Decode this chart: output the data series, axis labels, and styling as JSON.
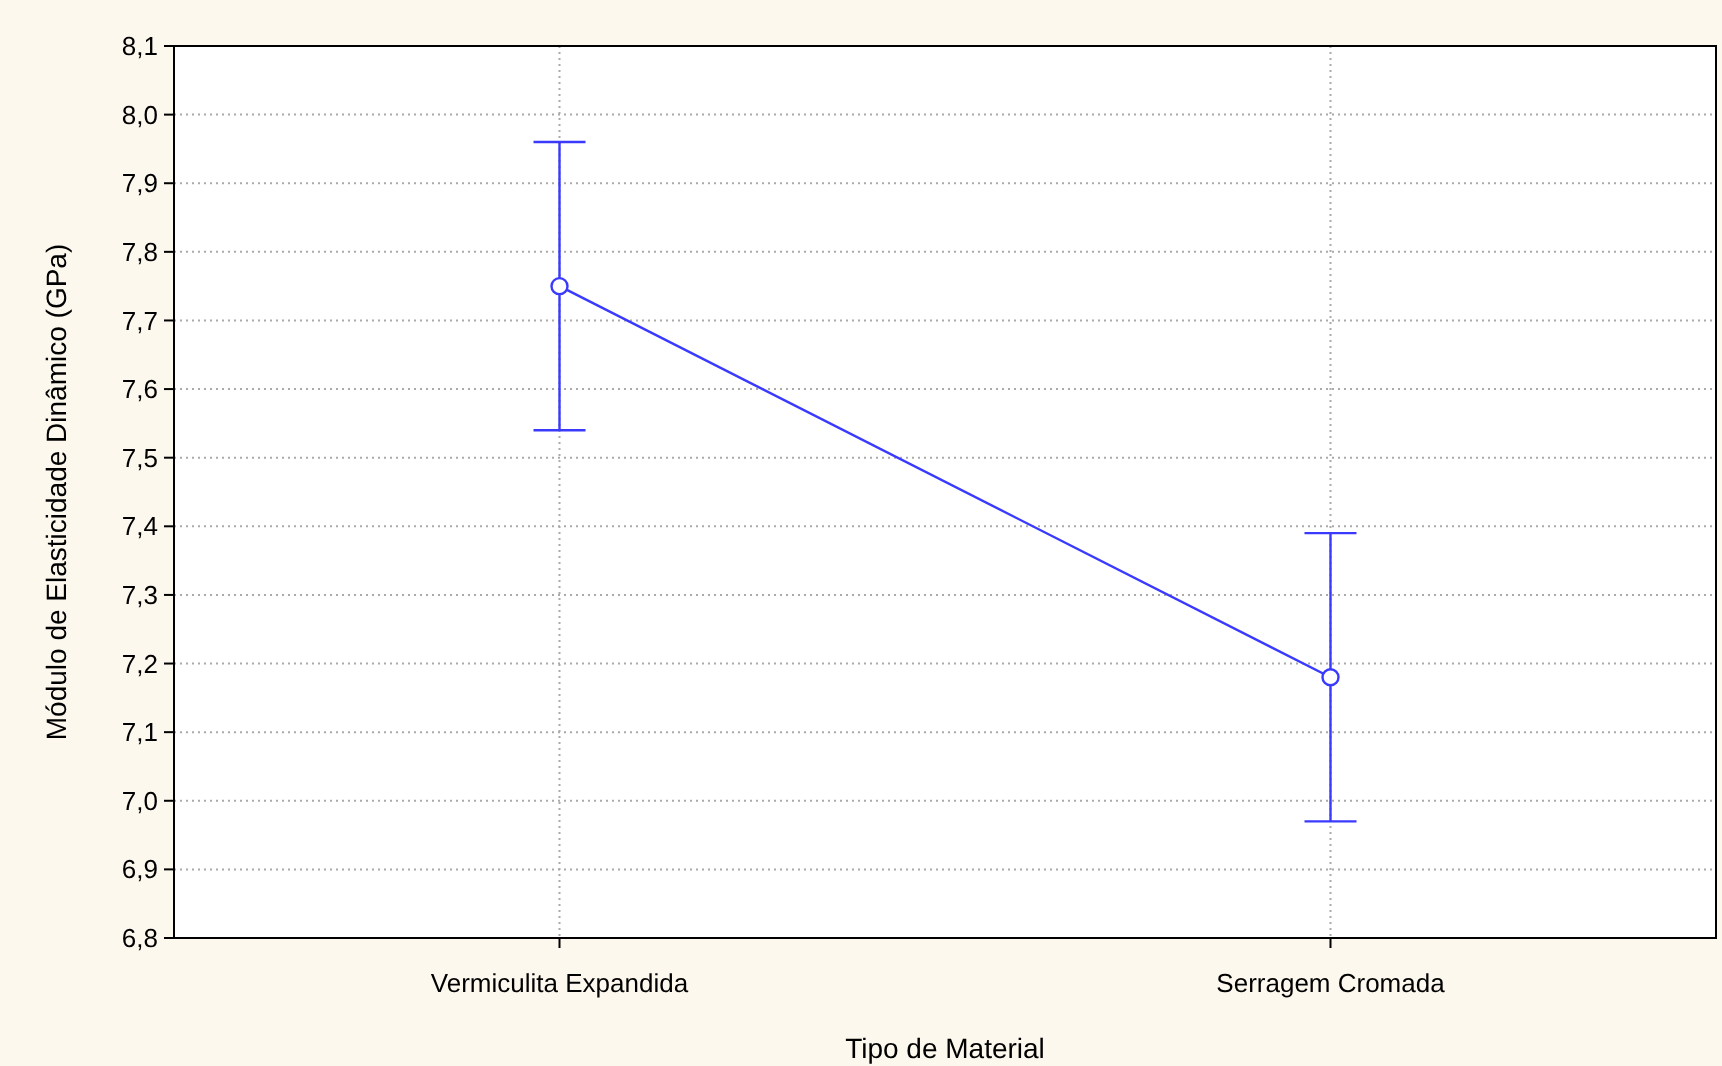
{
  "chart_data": {
    "type": "line",
    "xlabel": "Tipo de Material",
    "ylabel": "Módulo de Elasticidade Dinâmico (GPa)",
    "categories": [
      "Vermiculita Expandida",
      "Serragem Cromada"
    ],
    "series": [
      {
        "color": "#3a3aff",
        "values": [
          7.75,
          7.18
        ],
        "errors": [
          0.21,
          0.21
        ]
      }
    ],
    "ylim": [
      6.8,
      8.1
    ],
    "yticks": [
      {
        "value": 6.8,
        "label": "6,8"
      },
      {
        "value": 6.9,
        "label": "6,9"
      },
      {
        "value": 7.0,
        "label": "7,0"
      },
      {
        "value": 7.1,
        "label": "7,1"
      },
      {
        "value": 7.2,
        "label": "7,2"
      },
      {
        "value": 7.3,
        "label": "7,3"
      },
      {
        "value": 7.4,
        "label": "7,4"
      },
      {
        "value": 7.5,
        "label": "7,5"
      },
      {
        "value": 7.6,
        "label": "7,6"
      },
      {
        "value": 7.7,
        "label": "7,7"
      },
      {
        "value": 7.8,
        "label": "7,8"
      },
      {
        "value": 7.9,
        "label": "7,9"
      },
      {
        "value": 8.0,
        "label": "8,0"
      },
      {
        "value": 8.1,
        "label": "8,1"
      }
    ],
    "grid": true,
    "marker": "circle",
    "line_style": "solid"
  }
}
